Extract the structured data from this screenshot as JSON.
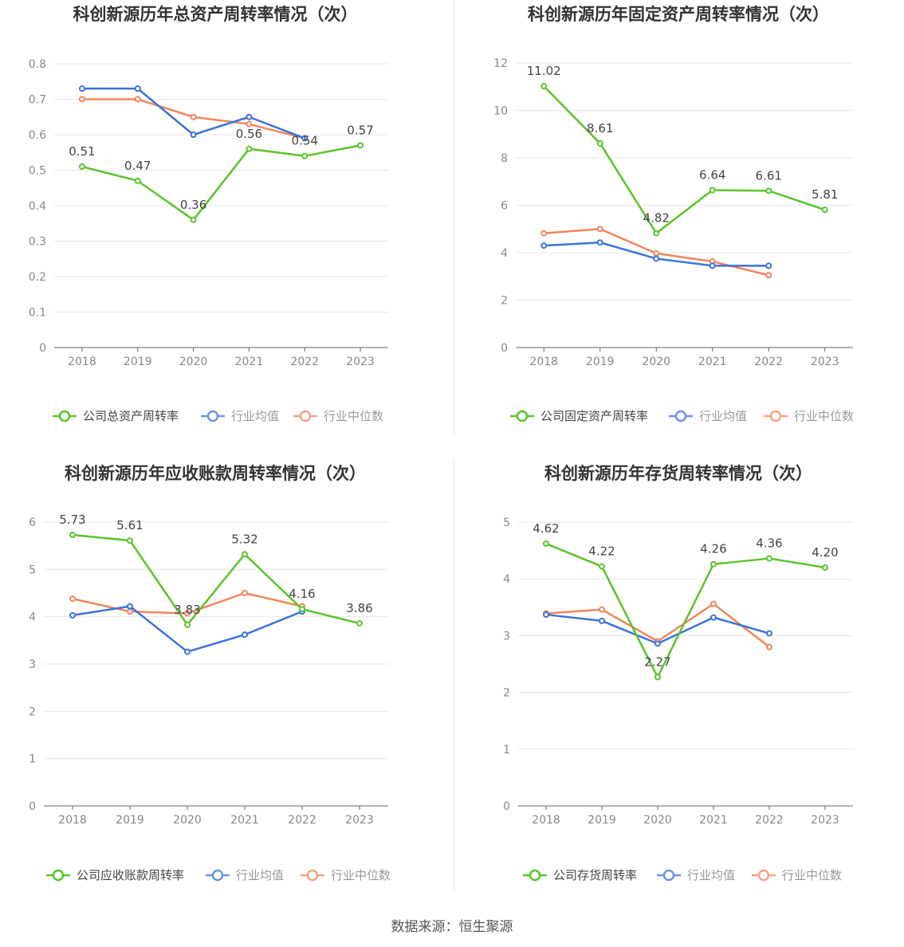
{
  "source_label": "数据来源：恒生聚源",
  "colors": {
    "company": "#5ac42a",
    "average": "#3d72d9",
    "median": "#f0865c"
  },
  "chart_data": [
    {
      "type": "line",
      "title": "科创新源历年总资产周转率情况（次）",
      "categories": [
        "2018",
        "2019",
        "2020",
        "2021",
        "2022",
        "2023"
      ],
      "ylim": [
        0,
        0.8
      ],
      "yticks": [
        "0",
        "0.1",
        "0.2",
        "0.3",
        "0.4",
        "0.5",
        "0.6",
        "0.7",
        "0.8"
      ],
      "series": [
        {
          "name": "公司总资产周转率",
          "role": "company",
          "values": [
            0.51,
            0.47,
            0.36,
            0.56,
            0.54,
            0.57
          ],
          "labels": [
            "0.51",
            "0.47",
            "0.36",
            "0.56",
            "0.54",
            "0.57"
          ]
        },
        {
          "name": "行业均值",
          "role": "average",
          "values": [
            0.73,
            0.73,
            0.6,
            0.65,
            0.59,
            null
          ]
        },
        {
          "name": "行业中位数",
          "role": "median",
          "values": [
            0.7,
            0.7,
            0.65,
            0.63,
            0.59,
            null
          ]
        }
      ]
    },
    {
      "type": "line",
      "title": "科创新源历年固定资产周转率情况（次）",
      "categories": [
        "2018",
        "2019",
        "2020",
        "2021",
        "2022",
        "2023"
      ],
      "ylim": [
        0,
        12
      ],
      "yticks": [
        "0",
        "2",
        "4",
        "6",
        "8",
        "10",
        "12"
      ],
      "series": [
        {
          "name": "公司固定资产周转率",
          "role": "company",
          "values": [
            11.02,
            8.61,
            4.82,
            6.64,
            6.61,
            5.81
          ],
          "labels": [
            "11.02",
            "8.61",
            "4.82",
            "6.64",
            "6.61",
            "5.81"
          ]
        },
        {
          "name": "行业均值",
          "role": "average",
          "values": [
            4.3,
            4.43,
            3.75,
            3.45,
            3.45,
            null
          ]
        },
        {
          "name": "行业中位数",
          "role": "median",
          "values": [
            4.82,
            5.0,
            3.97,
            3.63,
            3.05,
            null
          ]
        }
      ]
    },
    {
      "type": "line",
      "title": "科创新源历年应收账款周转率情况（次）",
      "categories": [
        "2018",
        "2019",
        "2020",
        "2021",
        "2022",
        "2023"
      ],
      "ylim": [
        0,
        6
      ],
      "yticks": [
        "0",
        "1",
        "2",
        "3",
        "4",
        "5",
        "6"
      ],
      "series": [
        {
          "name": "公司应收账款周转率",
          "role": "company",
          "values": [
            5.73,
            5.61,
            3.83,
            5.32,
            4.16,
            3.86
          ],
          "labels": [
            "5.73",
            "5.61",
            "3.83",
            "5.32",
            "4.16",
            "3.86"
          ]
        },
        {
          "name": "行业均值",
          "role": "average",
          "values": [
            4.03,
            4.22,
            3.26,
            3.62,
            4.11,
            null
          ]
        },
        {
          "name": "行业中位数",
          "role": "median",
          "values": [
            4.38,
            4.11,
            4.07,
            4.5,
            4.22,
            null
          ]
        }
      ]
    },
    {
      "type": "line",
      "title": "科创新源历年存货周转率情况（次）",
      "categories": [
        "2018",
        "2019",
        "2020",
        "2021",
        "2022",
        "2023"
      ],
      "ylim": [
        0,
        5
      ],
      "yticks": [
        "0",
        "1",
        "2",
        "3",
        "4",
        "5"
      ],
      "series": [
        {
          "name": "公司存货周转率",
          "role": "company",
          "values": [
            4.62,
            4.22,
            2.27,
            4.26,
            4.36,
            4.2
          ],
          "labels": [
            "4.62",
            "4.22",
            "2.27",
            "4.26",
            "4.36",
            "4.20"
          ]
        },
        {
          "name": "行业均值",
          "role": "average",
          "values": [
            3.37,
            3.26,
            2.86,
            3.32,
            3.04,
            null
          ]
        },
        {
          "name": "行业中位数",
          "role": "median",
          "values": [
            3.39,
            3.46,
            2.9,
            3.56,
            2.8,
            null
          ]
        }
      ]
    }
  ]
}
